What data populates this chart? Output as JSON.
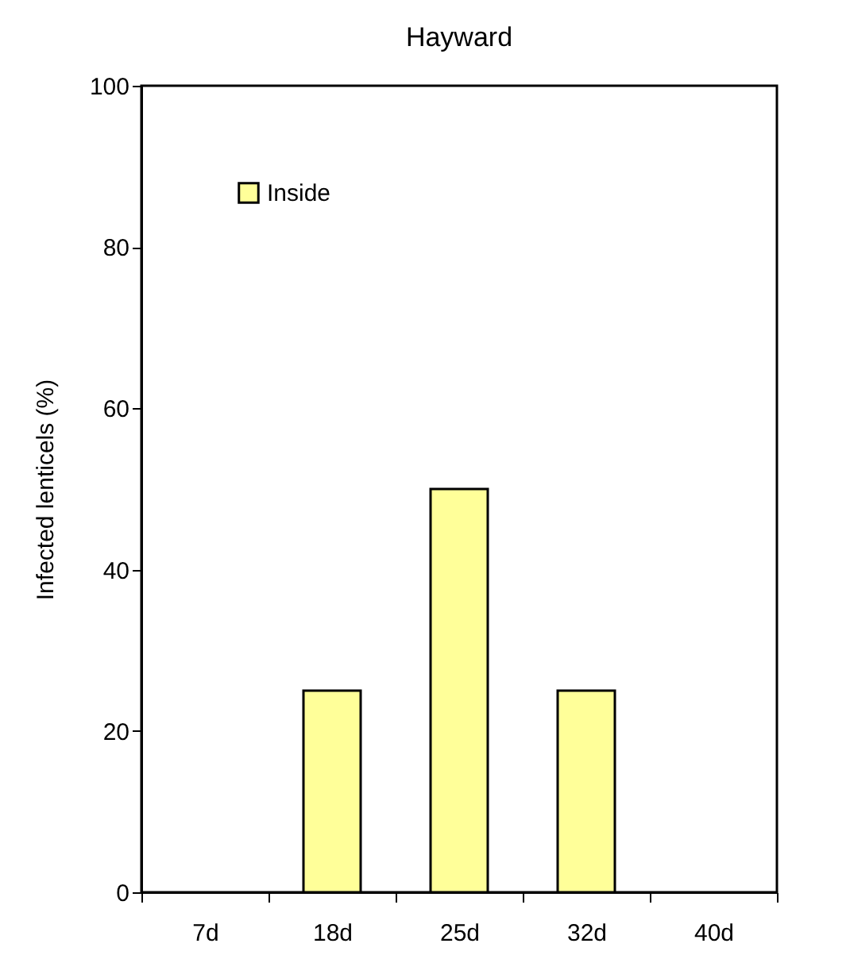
{
  "chart_data": {
    "type": "bar",
    "title": "Hayward",
    "ylabel": "Infected lenticels (%)",
    "categories": [
      "7d",
      "18d",
      "25d",
      "32d",
      "40d"
    ],
    "series": [
      {
        "name": "Inside",
        "color": "#ffff99",
        "values": [
          0,
          25,
          50,
          25,
          0
        ]
      }
    ],
    "ylim": [
      0,
      100
    ],
    "yticks": [
      0,
      20,
      40,
      60,
      80,
      100
    ],
    "grid": false,
    "legend": "top left"
  }
}
